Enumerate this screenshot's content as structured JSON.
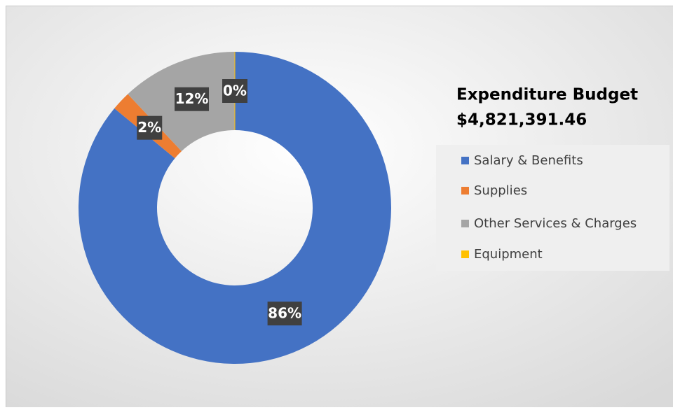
{
  "chart_data": {
    "type": "donut",
    "title": "Expenditure Budget",
    "subtitle": "$4,821,391.46",
    "categories": [
      "Salary & Benefits",
      "Supplies",
      "Other Services & Charges",
      "Equipment"
    ],
    "values": [
      86,
      2,
      12,
      0
    ],
    "value_labels": [
      "86%",
      "2%",
      "12%",
      "0%"
    ],
    "colors": [
      "#4472c4",
      "#ed7d31",
      "#a5a5a5",
      "#ffc000"
    ],
    "legend": "right"
  }
}
